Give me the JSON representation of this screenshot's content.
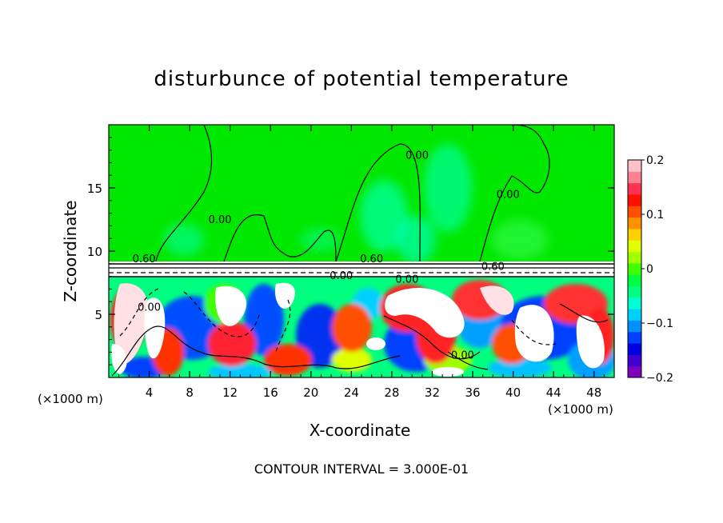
{
  "chart_data": {
    "type": "heatmap",
    "title": "disturbunce of potential temperature",
    "xlabel": "X-coordinate",
    "ylabel": "Z-coordinate",
    "x_unit": "(×1000 m)",
    "xlim": [
      0,
      50
    ],
    "ylim": [
      0,
      20
    ],
    "x_ticks": [
      4,
      8,
      12,
      16,
      20,
      24,
      28,
      32,
      36,
      40,
      44,
      48
    ],
    "x_tick_labels": [
      "4",
      "8",
      "12",
      "16",
      "20",
      "24",
      "28",
      "32",
      "36",
      "40",
      "44",
      "48"
    ],
    "y_ticks": [
      5,
      10,
      15
    ],
    "y_tick_labels": [
      "5",
      "10",
      "15"
    ],
    "colorbar": {
      "range": [
        -0.2,
        0.2
      ],
      "ticks": [
        0.2,
        0.1,
        0,
        -0.1,
        -0.2
      ],
      "tick_labels": [
        "0.2",
        "0.1",
        "0",
        "−0.1",
        "−0.2"
      ],
      "colors": [
        "#7f00bf",
        "#4000d0",
        "#0000e0",
        "#0040ff",
        "#0090ff",
        "#00d0ff",
        "#00ffd0",
        "#00ff80",
        "#00ff40",
        "#40ff00",
        "#a0ff00",
        "#e0ff00",
        "#ffd000",
        "#ff9000",
        "#ff5000",
        "#ff1000",
        "#ff3050",
        "#ff8090",
        "#ffc0c8"
      ]
    },
    "contour_labels": [
      {
        "text": "0.00",
        "x": 11.0,
        "z": 12.2
      },
      {
        "text": "0.00",
        "x": 30.5,
        "z": 17.3
      },
      {
        "text": "0.00",
        "x": 39.5,
        "z": 14.2
      },
      {
        "text": "0.60",
        "x": 3.5,
        "z": 9.1
      },
      {
        "text": "0.60",
        "x": 26.0,
        "z": 9.1
      },
      {
        "text": "0.60",
        "x": 38.0,
        "z": 8.5
      },
      {
        "text": "0.00",
        "x": 23.0,
        "z": 7.8
      },
      {
        "text": "0.00",
        "x": 29.5,
        "z": 7.5
      },
      {
        "text": "0.00",
        "x": 4.0,
        "z": 5.3
      },
      {
        "text": "0.00",
        "x": 35.0,
        "z": 1.5
      }
    ],
    "annotation": "CONTOUR INTERVAL = 3.000E-01"
  }
}
